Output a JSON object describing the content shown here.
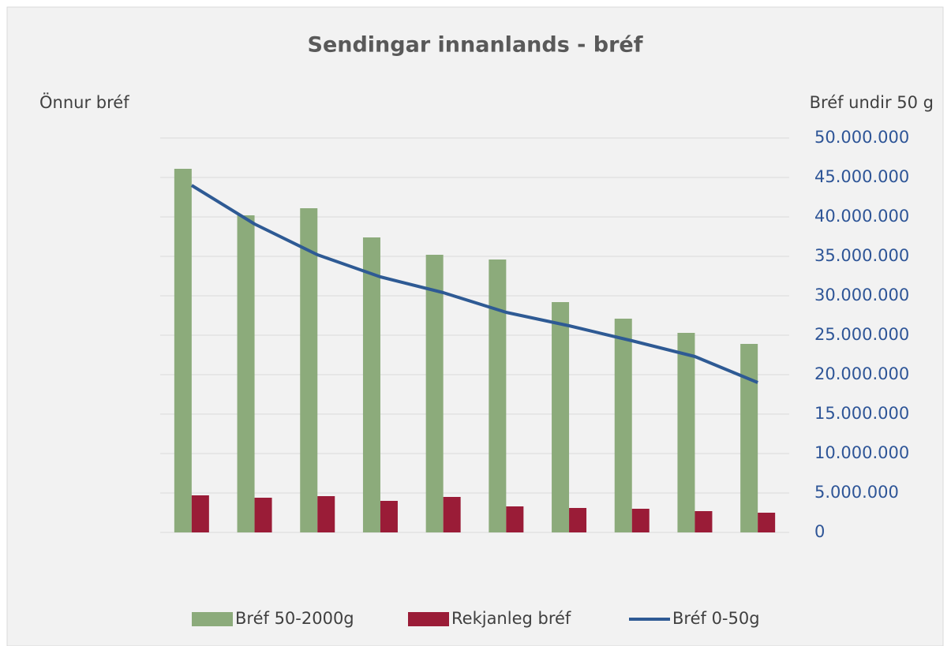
{
  "chart_data": {
    "type": "bar",
    "title": "Sendingar innanlands - bréf",
    "y_label": "Önnur bréf",
    "y2_label": "Bréf undir 50 g",
    "categories": [
      null,
      null,
      null,
      null,
      null,
      null,
      null,
      null,
      null,
      null
    ],
    "series": [
      {
        "name": "Bréf 50-2000g",
        "type": "bar",
        "color": "#8cab7b",
        "values": [
          46100000,
          40200000,
          41100000,
          37400000,
          35200000,
          34600000,
          29200000,
          27100000,
          25300000,
          23900000
        ]
      },
      {
        "name": "Rekjanleg bréf",
        "type": "bar",
        "color": "#9a1c37",
        "values": [
          4700000,
          4400000,
          4600000,
          4000000,
          4500000,
          3300000,
          3100000,
          3000000,
          2700000,
          2500000
        ]
      },
      {
        "name": "Bréf 0-50g",
        "type": "line",
        "color": "#2e5a94",
        "values": [
          44000000,
          39100000,
          35200000,
          32400000,
          30400000,
          27900000,
          26200000,
          24300000,
          22300000,
          19000000
        ]
      }
    ],
    "ylim": [
      0,
      50000000
    ],
    "yticks": [
      0,
      {
        "value": 5000000,
        "label": "5.000.000"
      },
      {
        "value": 10000000,
        "label": "10.000.000"
      },
      {
        "value": 15000000,
        "label": "15.000.000"
      },
      {
        "value": 20000000,
        "label": "20.000.000"
      },
      {
        "value": 25000000,
        "label": "25.000.000"
      },
      {
        "value": 30000000,
        "label": "30.000.000"
      },
      {
        "value": 35000000,
        "label": "35.000.000"
      },
      {
        "value": 40000000,
        "label": "40.000.000"
      },
      {
        "value": 45000000,
        "label": "45.000.000"
      },
      {
        "value": 50000000,
        "label": "50.000.000"
      }
    ],
    "grid": true,
    "legend": "bottom"
  }
}
